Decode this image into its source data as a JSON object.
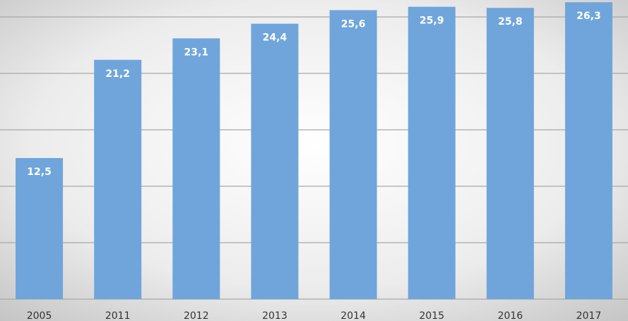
{
  "chart_data": {
    "type": "bar",
    "categories": [
      "2005",
      "2011",
      "2012",
      "2013",
      "2014",
      "2015",
      "2016",
      "2017"
    ],
    "values": [
      12.5,
      21.2,
      23.1,
      24.4,
      25.6,
      25.9,
      25.8,
      26.3
    ],
    "value_labels": [
      "12,5",
      "21,2",
      "23,1",
      "24,4",
      "25,6",
      "25,9",
      "25,8",
      "26,3"
    ],
    "color": "#6fa5db",
    "ylim": [
      0,
      26.5
    ],
    "yticks": [
      0,
      5,
      10,
      15,
      20,
      25
    ],
    "grid": true
  }
}
